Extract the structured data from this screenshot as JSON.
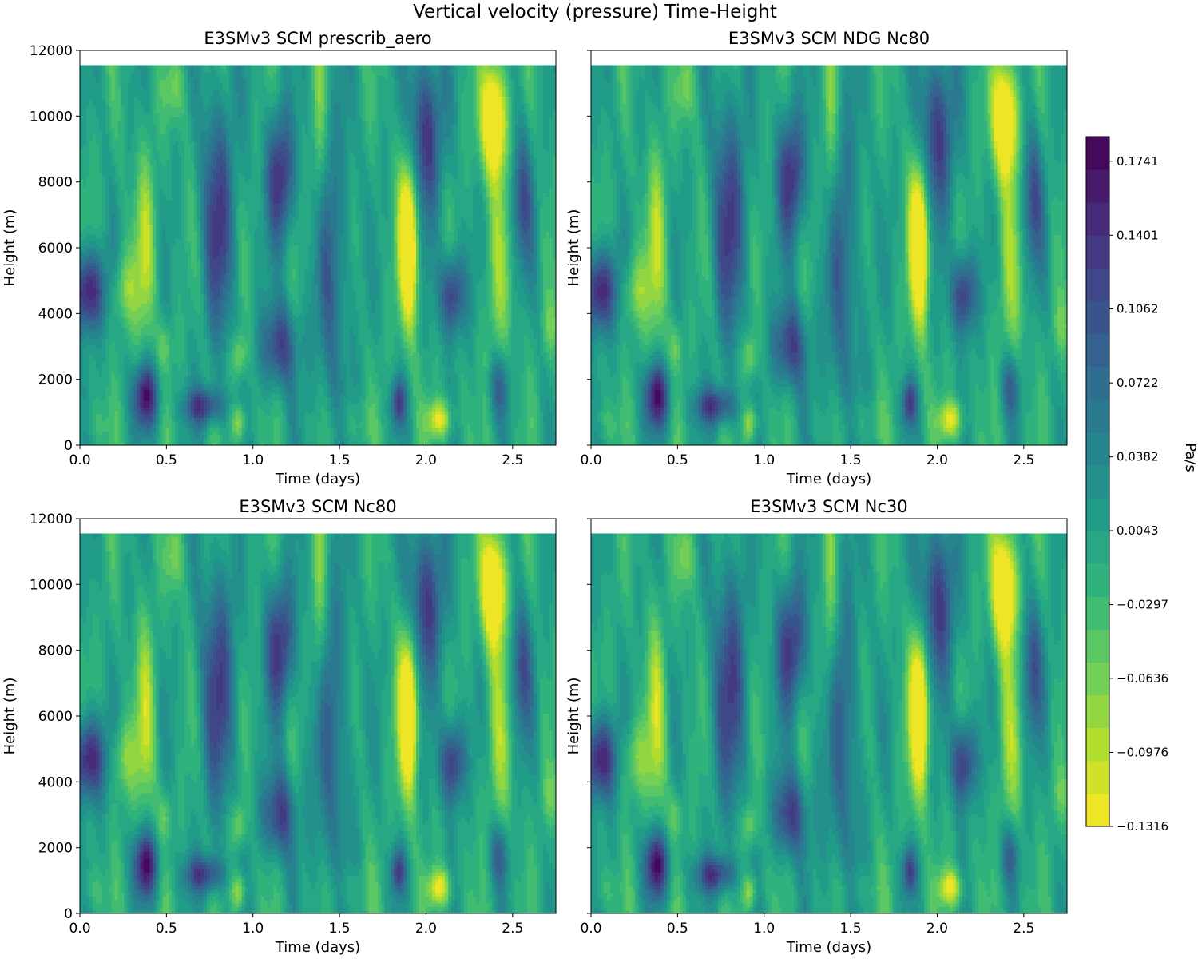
{
  "figure": {
    "title": "Vertical velocity (pressure) Time-Height"
  },
  "chart_data": [
    {
      "type": "heatmap",
      "title": "E3SMv3 SCM prescrib_aero",
      "xlabel": "Time (days)",
      "ylabel": "Height (m)",
      "xlim": [
        0,
        2.75
      ],
      "ylim": [
        0,
        12000
      ],
      "data_top": 11550,
      "xticks": [
        0.0,
        0.5,
        1.0,
        1.5,
        2.0,
        2.5
      ],
      "xtick_labels": [
        "0.0",
        "0.5",
        "1.0",
        "1.5",
        "2.0",
        "2.5"
      ],
      "yticks": [
        0,
        2000,
        4000,
        6000,
        8000,
        10000,
        12000
      ],
      "ytick_labels": [
        "0",
        "2000",
        "4000",
        "6000",
        "8000",
        "10000",
        "12000"
      ],
      "show_y_ticklabels": true
    },
    {
      "type": "heatmap",
      "title": "E3SMv3 SCM NDG Nc80",
      "xlabel": "Time (days)",
      "ylabel": "Height (m)",
      "xlim": [
        0,
        2.75
      ],
      "ylim": [
        0,
        12000
      ],
      "data_top": 11550,
      "xticks": [
        0.0,
        0.5,
        1.0,
        1.5,
        2.0,
        2.5
      ],
      "xtick_labels": [
        "0.0",
        "0.5",
        "1.0",
        "1.5",
        "2.0",
        "2.5"
      ],
      "yticks": [
        0,
        2000,
        4000,
        6000,
        8000,
        10000,
        12000
      ],
      "ytick_labels": [
        "0",
        "2000",
        "4000",
        "6000",
        "8000",
        "10000",
        "12000"
      ],
      "show_y_ticklabels": false
    },
    {
      "type": "heatmap",
      "title": "E3SMv3 SCM Nc80",
      "xlabel": "Time (days)",
      "ylabel": "Height (m)",
      "xlim": [
        0,
        2.75
      ],
      "ylim": [
        0,
        12000
      ],
      "data_top": 11550,
      "xticks": [
        0.0,
        0.5,
        1.0,
        1.5,
        2.0,
        2.5
      ],
      "xtick_labels": [
        "0.0",
        "0.5",
        "1.0",
        "1.5",
        "2.0",
        "2.5"
      ],
      "yticks": [
        0,
        2000,
        4000,
        6000,
        8000,
        10000,
        12000
      ],
      "ytick_labels": [
        "0",
        "2000",
        "4000",
        "6000",
        "8000",
        "10000",
        "12000"
      ],
      "show_y_ticklabels": true
    },
    {
      "type": "heatmap",
      "title": "E3SMv3 SCM Nc30",
      "xlabel": "Time (days)",
      "ylabel": "Height (m)",
      "xlim": [
        0,
        2.75
      ],
      "ylim": [
        0,
        12000
      ],
      "data_top": 11550,
      "xticks": [
        0.0,
        0.5,
        1.0,
        1.5,
        2.0,
        2.5
      ],
      "xtick_labels": [
        "0.0",
        "0.5",
        "1.0",
        "1.5",
        "2.0",
        "2.5"
      ],
      "yticks": [
        0,
        2000,
        4000,
        6000,
        8000,
        10000,
        12000
      ],
      "ytick_labels": [
        "0",
        "2000",
        "4000",
        "6000",
        "8000",
        "10000",
        "12000"
      ],
      "show_y_ticklabels": false
    }
  ],
  "field": {
    "background": -0.005,
    "features": [
      {
        "t": 0.05,
        "z": 4700,
        "st": 0.07,
        "sz": 900,
        "a": 0.18
      },
      {
        "t": 0.38,
        "z": 1500,
        "st": 0.05,
        "sz": 700,
        "a": 0.17
      },
      {
        "t": 0.72,
        "z": 1200,
        "st": 0.08,
        "sz": 400,
        "a": 0.13
      },
      {
        "t": 0.8,
        "z": 7000,
        "st": 0.07,
        "sz": 2600,
        "a": 0.12
      },
      {
        "t": 1.16,
        "z": 8200,
        "st": 0.06,
        "sz": 1400,
        "a": 0.14
      },
      {
        "t": 1.15,
        "z": 3000,
        "st": 0.07,
        "sz": 900,
        "a": 0.13
      },
      {
        "t": 1.45,
        "z": 5500,
        "st": 0.08,
        "sz": 3500,
        "a": 0.08
      },
      {
        "t": 1.84,
        "z": 1300,
        "st": 0.03,
        "sz": 500,
        "a": 0.12
      },
      {
        "t": 2.15,
        "z": 4600,
        "st": 0.05,
        "sz": 900,
        "a": 0.15
      },
      {
        "t": 2.0,
        "z": 9500,
        "st": 0.07,
        "sz": 1800,
        "a": 0.14
      },
      {
        "t": 2.55,
        "z": 7500,
        "st": 0.05,
        "sz": 1500,
        "a": 0.1
      },
      {
        "t": 2.42,
        "z": 1800,
        "st": 0.04,
        "sz": 700,
        "a": 0.09
      },
      {
        "t": 1.9,
        "z": 6200,
        "st": 0.04,
        "sz": 1700,
        "a": -0.21
      },
      {
        "t": 2.39,
        "z": 9900,
        "st": 0.05,
        "sz": 1200,
        "a": -0.2
      },
      {
        "t": 2.42,
        "z": 5500,
        "st": 0.05,
        "sz": 2500,
        "a": -0.06
      },
      {
        "t": 2.08,
        "z": 800,
        "st": 0.05,
        "sz": 400,
        "a": -0.12
      },
      {
        "t": 0.92,
        "z": 700,
        "st": 0.03,
        "sz": 400,
        "a": -0.09
      },
      {
        "t": 0.92,
        "z": 2700,
        "st": 0.03,
        "sz": 500,
        "a": -0.07
      },
      {
        "t": 0.38,
        "z": 6000,
        "st": 0.04,
        "sz": 2000,
        "a": -0.08
      },
      {
        "t": 0.25,
        "z": 4700,
        "st": 0.06,
        "sz": 800,
        "a": -0.07
      },
      {
        "t": 1.38,
        "z": 9000,
        "st": 0.03,
        "sz": 2500,
        "a": -0.07
      },
      {
        "t": 0.55,
        "z": 10800,
        "st": 0.04,
        "sz": 700,
        "a": -0.05
      },
      {
        "t": 0.49,
        "z": 3000,
        "st": 0.03,
        "sz": 500,
        "a": -0.05
      },
      {
        "t": 1.56,
        "z": 700,
        "st": 0.08,
        "sz": 500,
        "a": -0.03
      },
      {
        "t": 2.72,
        "z": 3600,
        "st": 0.04,
        "sz": 600,
        "a": -0.04
      },
      {
        "t": 0.08,
        "z": 700,
        "st": 0.06,
        "sz": 500,
        "a": -0.03
      }
    ]
  },
  "colorbar": {
    "label": "Pa/s",
    "min": -0.1316,
    "max": 0.1854,
    "levels": 21,
    "tick_values": [
      -0.1316,
      -0.0976,
      -0.0636,
      -0.0297,
      0.0043,
      0.0382,
      0.0722,
      0.1062,
      0.1401,
      0.1741
    ],
    "tick_labels": [
      "−0.1316",
      "−0.0976",
      "−0.0636",
      "−0.0297",
      "0.0043",
      "0.0382",
      "0.0722",
      "0.1062",
      "0.1401",
      "0.1741"
    ],
    "colormap": [
      "#fde725",
      "#b5de2b",
      "#6ece58",
      "#35b779",
      "#1f9e89",
      "#26828e",
      "#31688e",
      "#3e4989",
      "#482878",
      "#440154"
    ]
  }
}
